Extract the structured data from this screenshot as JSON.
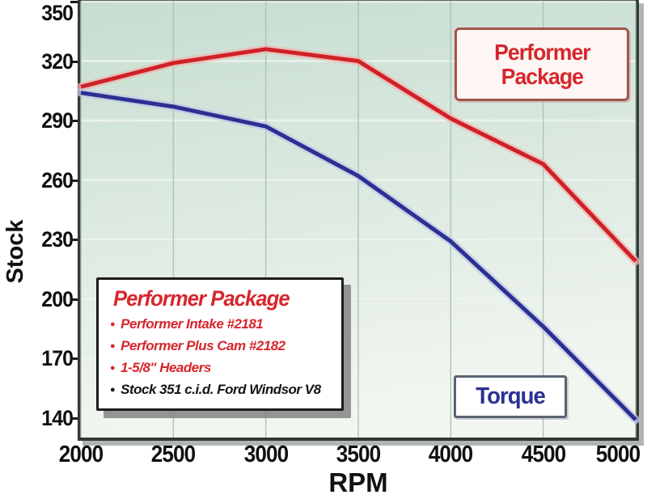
{
  "chart_data": {
    "type": "line",
    "title": "",
    "xlabel": "RPM",
    "ylabel": "Stock",
    "x": [
      2000,
      2500,
      3000,
      3500,
      4000,
      4500,
      5000
    ],
    "x_tick_labels": [
      "2000",
      "2500",
      "3000",
      "3500",
      "4000",
      "4500",
      "5000"
    ],
    "y_ticks": [
      350,
      320,
      290,
      260,
      230,
      200,
      170,
      140
    ],
    "xlim": [
      2000,
      5000
    ],
    "ylim": [
      130,
      350
    ],
    "grid": true,
    "legend_position": "lower-left box, callout labels on lines",
    "series": [
      {
        "name": "Performer Package",
        "color": "#cf2128",
        "halo_color": "#efb4ae",
        "values": [
          307,
          319,
          326,
          320,
          291,
          268,
          219
        ]
      },
      {
        "name": "Torque (Stock)",
        "color": "#2b3093",
        "halo_color": "#c2c7e4",
        "values": [
          304,
          297,
          287,
          262,
          229,
          186,
          139
        ]
      }
    ]
  },
  "legend": {
    "title": "Performer Package",
    "items": [
      {
        "text": "Performer Intake #2181",
        "color": "#d6262c"
      },
      {
        "text": "Performer Plus Cam #2182",
        "color": "#d6262c"
      },
      {
        "text": "1-5/8\" Headers",
        "color": "#d6262c"
      },
      {
        "text": "Stock 351 c.i.d. Ford Windsor V8",
        "color": "#141414"
      }
    ]
  },
  "callouts": {
    "performer": {
      "line1": "Performer",
      "line2": "Package"
    },
    "torque": {
      "label": "Torque"
    }
  },
  "colors": {
    "plot_bg_top": "#c6ddd0",
    "plot_bg_bottom": "#f2f6f1",
    "grid_vertical": "#a9c2b3",
    "grid_horizontal": "#eef4ee",
    "frame_border": "#323a34",
    "tick_text": "#101010"
  }
}
